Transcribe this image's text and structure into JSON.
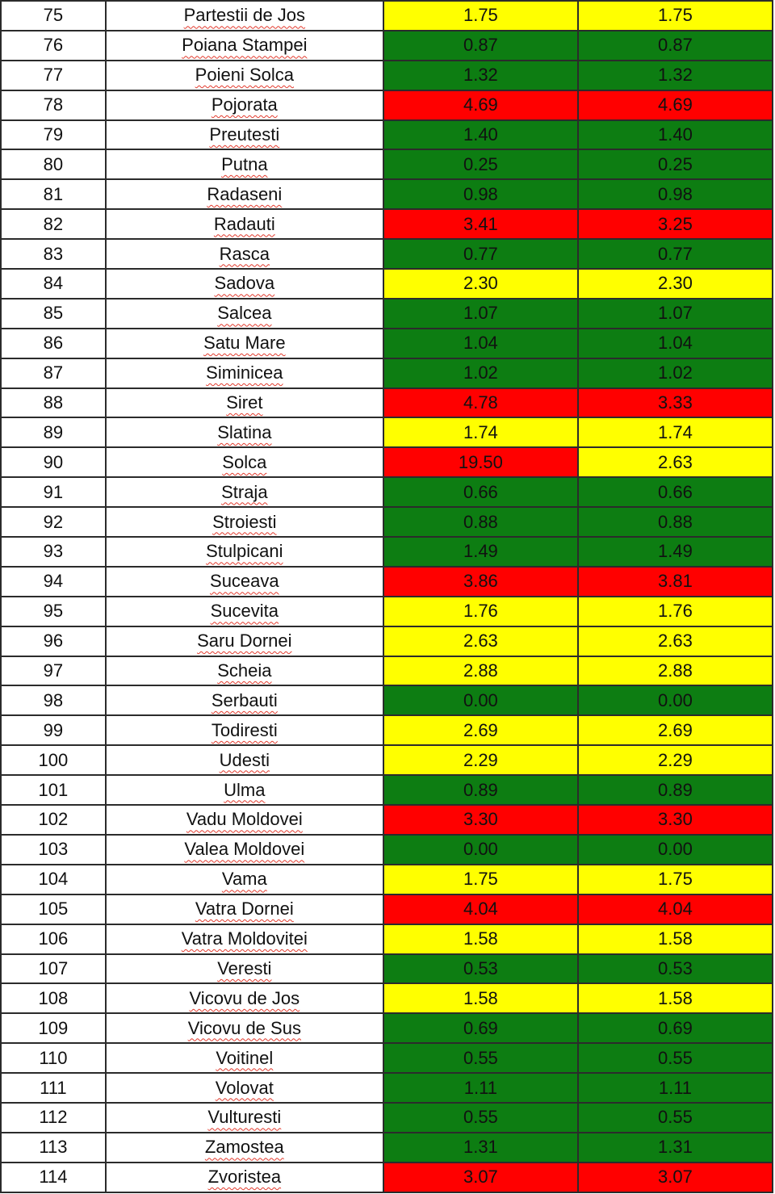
{
  "colors": {
    "green": "#0d7d12",
    "yellow": "#ffff00",
    "red": "#ff0000"
  },
  "rows": [
    {
      "idx": "75",
      "name": "Partestii de Jos",
      "v1": "1.75",
      "c1": "yellow",
      "v2": "1.75",
      "c2": "yellow"
    },
    {
      "idx": "76",
      "name": "Poiana Stampei",
      "v1": "0.87",
      "c1": "green",
      "v2": "0.87",
      "c2": "green"
    },
    {
      "idx": "77",
      "name": "Poieni Solca",
      "v1": "1.32",
      "c1": "green",
      "v2": "1.32",
      "c2": "green"
    },
    {
      "idx": "78",
      "name": "Pojorata",
      "v1": "4.69",
      "c1": "red",
      "v2": "4.69",
      "c2": "red"
    },
    {
      "idx": "79",
      "name": "Preutesti",
      "v1": "1.40",
      "c1": "green",
      "v2": "1.40",
      "c2": "green"
    },
    {
      "idx": "80",
      "name": "Putna",
      "v1": "0.25",
      "c1": "green",
      "v2": "0.25",
      "c2": "green"
    },
    {
      "idx": "81",
      "name": "Radaseni",
      "v1": "0.98",
      "c1": "green",
      "v2": "0.98",
      "c2": "green"
    },
    {
      "idx": "82",
      "name": "Radauti",
      "v1": "3.41",
      "c1": "red",
      "v2": "3.25",
      "c2": "red"
    },
    {
      "idx": "83",
      "name": "Rasca",
      "v1": "0.77",
      "c1": "green",
      "v2": "0.77",
      "c2": "green"
    },
    {
      "idx": "84",
      "name": "Sadova",
      "v1": "2.30",
      "c1": "yellow",
      "v2": "2.30",
      "c2": "yellow"
    },
    {
      "idx": "85",
      "name": "Salcea",
      "v1": "1.07",
      "c1": "green",
      "v2": "1.07",
      "c2": "green"
    },
    {
      "idx": "86",
      "name": "Satu Mare",
      "v1": "1.04",
      "c1": "green",
      "v2": "1.04",
      "c2": "green"
    },
    {
      "idx": "87",
      "name": "Siminicea",
      "v1": "1.02",
      "c1": "green",
      "v2": "1.02",
      "c2": "green"
    },
    {
      "idx": "88",
      "name": "Siret",
      "v1": "4.78",
      "c1": "red",
      "v2": "3.33",
      "c2": "red"
    },
    {
      "idx": "89",
      "name": "Slatina",
      "v1": "1.74",
      "c1": "yellow",
      "v2": "1.74",
      "c2": "yellow"
    },
    {
      "idx": "90",
      "name": "Solca",
      "v1": "19.50",
      "c1": "red",
      "v2": "2.63",
      "c2": "yellow"
    },
    {
      "idx": "91",
      "name": "Straja",
      "v1": "0.66",
      "c1": "green",
      "v2": "0.66",
      "c2": "green"
    },
    {
      "idx": "92",
      "name": "Stroiesti",
      "v1": "0.88",
      "c1": "green",
      "v2": "0.88",
      "c2": "green"
    },
    {
      "idx": "93",
      "name": "Stulpicani",
      "v1": "1.49",
      "c1": "green",
      "v2": "1.49",
      "c2": "green"
    },
    {
      "idx": "94",
      "name": "Suceava",
      "v1": "3.86",
      "c1": "red",
      "v2": "3.81",
      "c2": "red"
    },
    {
      "idx": "95",
      "name": "Sucevita",
      "v1": "1.76",
      "c1": "yellow",
      "v2": "1.76",
      "c2": "yellow"
    },
    {
      "idx": "96",
      "name": "Saru Dornei",
      "v1": "2.63",
      "c1": "yellow",
      "v2": "2.63",
      "c2": "yellow"
    },
    {
      "idx": "97",
      "name": "Scheia",
      "v1": "2.88",
      "c1": "yellow",
      "v2": "2.88",
      "c2": "yellow"
    },
    {
      "idx": "98",
      "name": "Serbauti",
      "v1": "0.00",
      "c1": "green",
      "v2": "0.00",
      "c2": "green"
    },
    {
      "idx": "99",
      "name": "Todiresti",
      "v1": "2.69",
      "c1": "yellow",
      "v2": "2.69",
      "c2": "yellow"
    },
    {
      "idx": "100",
      "name": "Udesti",
      "v1": "2.29",
      "c1": "yellow",
      "v2": "2.29",
      "c2": "yellow"
    },
    {
      "idx": "101",
      "name": "Ulma",
      "v1": "0.89",
      "c1": "green",
      "v2": "0.89",
      "c2": "green"
    },
    {
      "idx": "102",
      "name": "Vadu Moldovei",
      "v1": "3.30",
      "c1": "red",
      "v2": "3.30",
      "c2": "red"
    },
    {
      "idx": "103",
      "name": "Valea Moldovei",
      "v1": "0.00",
      "c1": "green",
      "v2": "0.00",
      "c2": "green"
    },
    {
      "idx": "104",
      "name": "Vama",
      "v1": "1.75",
      "c1": "yellow",
      "v2": "1.75",
      "c2": "yellow"
    },
    {
      "idx": "105",
      "name": "Vatra Dornei",
      "v1": "4.04",
      "c1": "red",
      "v2": "4.04",
      "c2": "red"
    },
    {
      "idx": "106",
      "name": "Vatra Moldovitei",
      "v1": "1.58",
      "c1": "yellow",
      "v2": "1.58",
      "c2": "yellow"
    },
    {
      "idx": "107",
      "name": "Veresti",
      "v1": "0.53",
      "c1": "green",
      "v2": "0.53",
      "c2": "green"
    },
    {
      "idx": "108",
      "name": "Vicovu de Jos",
      "v1": "1.58",
      "c1": "yellow",
      "v2": "1.58",
      "c2": "yellow"
    },
    {
      "idx": "109",
      "name": "Vicovu de Sus",
      "v1": "0.69",
      "c1": "green",
      "v2": "0.69",
      "c2": "green"
    },
    {
      "idx": "110",
      "name": "Voitinel",
      "v1": "0.55",
      "c1": "green",
      "v2": "0.55",
      "c2": "green"
    },
    {
      "idx": "111",
      "name": "Volovat",
      "v1": "1.11",
      "c1": "green",
      "v2": "1.11",
      "c2": "green"
    },
    {
      "idx": "112",
      "name": "Vulturesti",
      "v1": "0.55",
      "c1": "green",
      "v2": "0.55",
      "c2": "green"
    },
    {
      "idx": "113",
      "name": "Zamostea",
      "v1": "1.31",
      "c1": "green",
      "v2": "1.31",
      "c2": "green"
    },
    {
      "idx": "114",
      "name": "Zvoristea",
      "v1": "3.07",
      "c1": "red",
      "v2": "3.07",
      "c2": "red"
    }
  ]
}
